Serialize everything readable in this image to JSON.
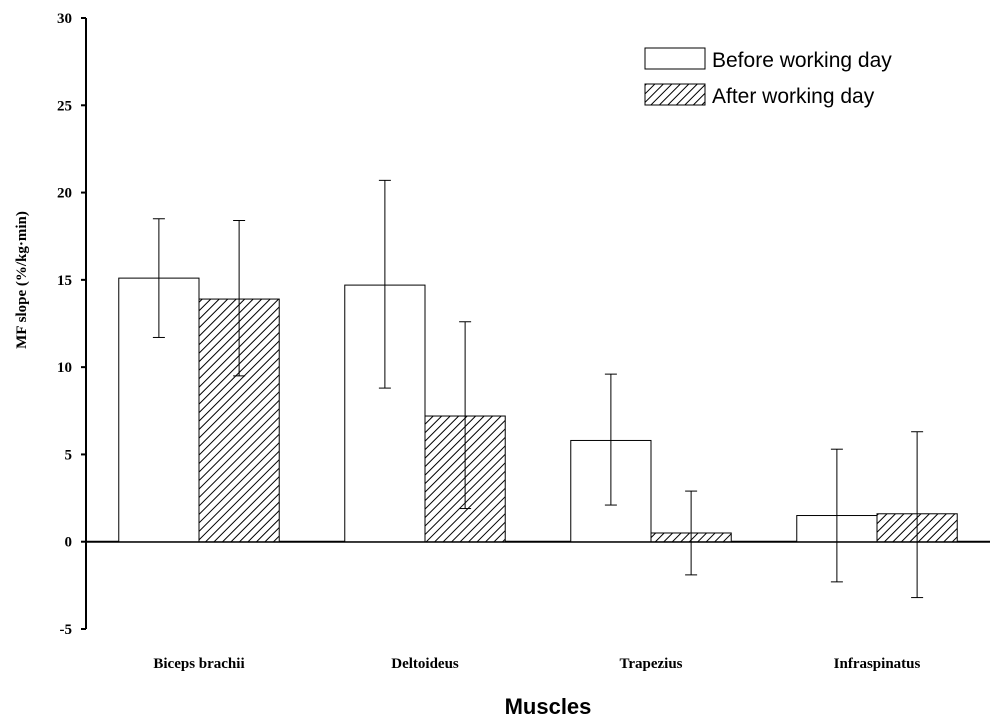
{
  "chart_data": {
    "type": "bar",
    "categories": [
      "Biceps brachii",
      "Deltoideus",
      "Trapezius",
      "Infraspinatus"
    ],
    "series": [
      {
        "name": "Before working day",
        "values": [
          15.1,
          14.7,
          5.8,
          1.5
        ],
        "error_low": [
          11.7,
          8.8,
          2.1,
          -2.3
        ],
        "error_high": [
          18.5,
          20.7,
          9.6,
          5.3
        ],
        "fill": "none",
        "color": "#ffffff"
      },
      {
        "name": "After working day",
        "values": [
          13.9,
          7.2,
          0.5,
          1.6
        ],
        "error_low": [
          9.5,
          1.9,
          -1.9,
          -3.2
        ],
        "error_high": [
          18.4,
          12.6,
          2.9,
          6.3
        ],
        "fill": "hatched",
        "color": "#ffffff"
      }
    ],
    "xlabel": "Muscles",
    "ylabel": "MF slope (%/kg·min)",
    "ylim": [
      -5,
      30
    ],
    "yticks": [
      "-5",
      "0",
      "5",
      "10",
      "15",
      "20",
      "25",
      "30"
    ],
    "grid": false,
    "legend_position": "top-right"
  }
}
